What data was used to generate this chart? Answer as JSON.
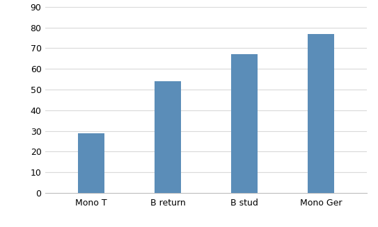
{
  "categories": [
    "Mono T",
    "B return",
    "B stud",
    "Mono Ger"
  ],
  "values": [
    29,
    54,
    67,
    77
  ],
  "bar_color": "#5B8DB8",
  "ylim": [
    0,
    90
  ],
  "yticks": [
    0,
    10,
    20,
    30,
    40,
    50,
    60,
    70,
    80,
    90
  ],
  "grid_color": "#D9D9D9",
  "background_color": "#FFFFFF",
  "tick_fontsize": 9,
  "label_fontsize": 9,
  "bar_width": 0.35,
  "figure_border_color": "#BFBFBF"
}
